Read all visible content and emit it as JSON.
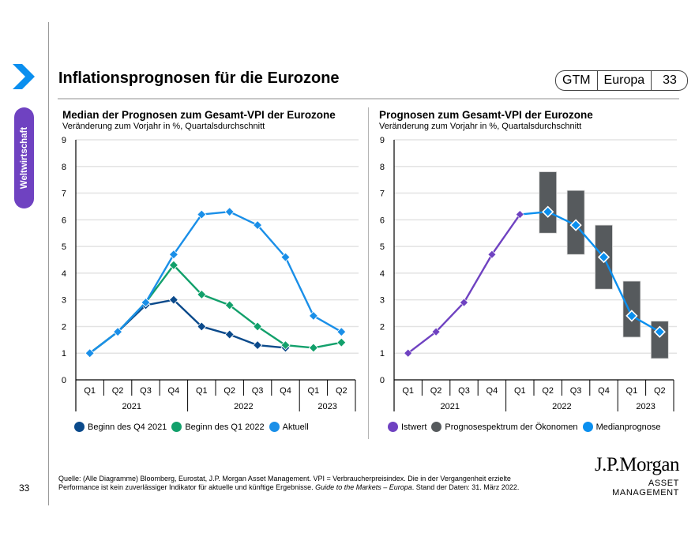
{
  "sidebar": {
    "section_label": "Weltwirtschaft",
    "arrow_icon": "chevron-right-icon",
    "page_number": "33"
  },
  "header": {
    "title": "Inflationsprognosen für die Eurozone",
    "badge": {
      "series": "GTM",
      "region": "Europa",
      "page": "33"
    }
  },
  "colors": {
    "accent_purple": "#6f42c1",
    "arrow_blue": "#0a8fef",
    "dark_blue": "#0b4a8b",
    "green": "#12a06b",
    "light_blue": "#1a8fe8",
    "istwert": "#6f42c1",
    "range_gray": "#565a5d",
    "median_blue": "#0a8fef"
  },
  "footer": {
    "source_line1": "Quelle: (Alle Diagramme) Bloomberg, Eurostat, J.P. Morgan Asset Management. VPI = Verbraucherpreisindex. Die in der Vergangenheit erzielte",
    "source_line2_a": "Performance ist kein zuverlässiger Indikator für aktuelle und künftige Ergebnisse. ",
    "source_line2_italic": "Guide to the Markets – Europa",
    "source_line2_b": ". Stand der Daten: 31. März 2022.",
    "logo_main": "J.P.Morgan",
    "logo_sub": "ASSET MANAGEMENT"
  },
  "chart_data": [
    {
      "type": "line",
      "title": "Median der Prognosen zum Gesamt-VPI der Eurozone",
      "subtitle": "Veränderung zum Vorjahr in %, Quartalsdurchschnitt",
      "categories": [
        "Q1",
        "Q2",
        "Q3",
        "Q4",
        "Q1",
        "Q2",
        "Q3",
        "Q4",
        "Q1",
        "Q2"
      ],
      "year_groups": [
        {
          "label": "2021",
          "span": 4
        },
        {
          "label": "2022",
          "span": 4
        },
        {
          "label": "2023",
          "span": 2
        }
      ],
      "ylim": [
        0,
        9
      ],
      "yticks": [
        0,
        1,
        2,
        3,
        4,
        5,
        6,
        7,
        8,
        9
      ],
      "grid": true,
      "legend_position": "bottom",
      "series": [
        {
          "name": "Beginn des Q4 2021",
          "color": "#0b4a8b",
          "values": [
            1.0,
            1.8,
            2.8,
            3.0,
            2.0,
            1.7,
            1.3,
            1.2,
            null,
            null
          ]
        },
        {
          "name": "Beginn des Q1 2022",
          "color": "#12a06b",
          "values": [
            1.0,
            1.8,
            2.9,
            4.3,
            3.2,
            2.8,
            2.0,
            1.3,
            1.2,
            1.4
          ]
        },
        {
          "name": "Aktuell",
          "color": "#1a8fe8",
          "values": [
            1.0,
            1.8,
            2.9,
            4.7,
            6.2,
            6.3,
            5.8,
            4.6,
            2.4,
            1.8
          ]
        }
      ]
    },
    {
      "type": "line",
      "title": "Prognosen zum Gesamt-VPI der Eurozone",
      "subtitle": "Veränderung zum Vorjahr in %, Quartalsdurchschnitt",
      "categories": [
        "Q1",
        "Q2",
        "Q3",
        "Q4",
        "Q1",
        "Q2",
        "Q3",
        "Q4",
        "Q1",
        "Q2"
      ],
      "year_groups": [
        {
          "label": "2021",
          "span": 4
        },
        {
          "label": "2022",
          "span": 4
        },
        {
          "label": "2023",
          "span": 2
        }
      ],
      "ylim": [
        0,
        9
      ],
      "yticks": [
        0,
        1,
        2,
        3,
        4,
        5,
        6,
        7,
        8,
        9
      ],
      "grid": true,
      "legend_position": "bottom",
      "series": [
        {
          "name": "Istwert",
          "color": "#6f42c1",
          "values": [
            1.0,
            1.8,
            2.9,
            4.7,
            6.2,
            null,
            null,
            null,
            null,
            null
          ]
        },
        {
          "name": "Prognosespektrum der Ökonomen",
          "color": "#565a5d",
          "kind": "range",
          "ranges": [
            null,
            null,
            null,
            null,
            null,
            [
              5.5,
              7.8
            ],
            [
              4.7,
              7.1
            ],
            [
              3.4,
              5.8
            ],
            [
              1.6,
              3.7
            ],
            [
              0.8,
              2.2
            ]
          ]
        },
        {
          "name": "Medianprognose",
          "color": "#0a8fef",
          "values": [
            null,
            null,
            null,
            null,
            6.2,
            6.3,
            5.8,
            4.6,
            2.4,
            1.8
          ]
        }
      ]
    }
  ]
}
